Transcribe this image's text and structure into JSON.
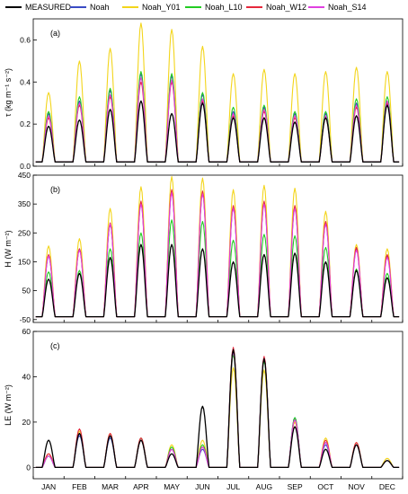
{
  "legend": [
    {
      "name": "MEASURED",
      "color": "#000000"
    },
    {
      "name": "Noah",
      "color": "#3a4bc4"
    },
    {
      "name": "Noah_Y01",
      "color": "#f3d51b"
    },
    {
      "name": "Noah_L10",
      "color": "#22cc22"
    },
    {
      "name": "Noah_W12",
      "color": "#e6283c"
    },
    {
      "name": "Noah_S14",
      "color": "#e040e0"
    }
  ],
  "months": [
    "JAN",
    "FEB",
    "MAR",
    "APR",
    "MAY",
    "JUN",
    "JUL",
    "AUG",
    "SEP",
    "OCT",
    "NOV",
    "DEC"
  ],
  "chart_data": [
    {
      "type": "line",
      "panel_label": "(a)",
      "ylabel": "τ (kg m⁻¹ s⁻²)",
      "ylim": [
        0,
        0.7
      ],
      "yticks": [
        "0.0",
        "0.2",
        "0.4",
        "0.6"
      ],
      "ytick_values": [
        0,
        0.2,
        0.4,
        0.6
      ],
      "x": [
        "JAN",
        "FEB",
        "MAR",
        "APR",
        "MAY",
        "JUN",
        "JUL",
        "AUG",
        "SEP",
        "OCT",
        "NOV",
        "DEC"
      ],
      "series": [
        {
          "name": "MEASURED",
          "peaks": [
            0.19,
            0.22,
            0.27,
            0.31,
            0.25,
            0.3,
            0.23,
            0.23,
            0.21,
            0.23,
            0.24,
            0.29
          ]
        },
        {
          "name": "Noah",
          "peaks": [
            0.25,
            0.31,
            0.36,
            0.44,
            0.43,
            0.34,
            0.26,
            0.28,
            0.25,
            0.25,
            0.3,
            0.31
          ]
        },
        {
          "name": "Noah_Y01",
          "peaks": [
            0.35,
            0.5,
            0.56,
            0.68,
            0.65,
            0.57,
            0.44,
            0.46,
            0.44,
            0.45,
            0.47,
            0.45
          ]
        },
        {
          "name": "Noah_L10",
          "peaks": [
            0.26,
            0.33,
            0.37,
            0.45,
            0.44,
            0.35,
            0.28,
            0.29,
            0.26,
            0.26,
            0.32,
            0.33
          ]
        },
        {
          "name": "Noah_W12",
          "peaks": [
            0.23,
            0.29,
            0.33,
            0.4,
            0.4,
            0.31,
            0.24,
            0.26,
            0.23,
            0.23,
            0.28,
            0.3
          ]
        },
        {
          "name": "Noah_S14",
          "peaks": [
            0.24,
            0.3,
            0.34,
            0.42,
            0.41,
            0.32,
            0.25,
            0.27,
            0.24,
            0.24,
            0.29,
            0.31
          ]
        }
      ],
      "base": 0.02
    },
    {
      "type": "line",
      "panel_label": "(b)",
      "ylabel": "H (W m⁻²)",
      "ylim": [
        -60,
        450
      ],
      "yticks": [
        "-50",
        "50",
        "150",
        "250",
        "350",
        "450"
      ],
      "ytick_values": [
        -50,
        50,
        150,
        250,
        350,
        450
      ],
      "x": [
        "JAN",
        "FEB",
        "MAR",
        "APR",
        "MAY",
        "JUN",
        "JUL",
        "AUG",
        "SEP",
        "OCT",
        "NOV",
        "DEC"
      ],
      "series": [
        {
          "name": "MEASURED",
          "peaks": [
            90,
            110,
            165,
            210,
            210,
            195,
            150,
            175,
            180,
            150,
            120,
            95
          ]
        },
        {
          "name": "Noah",
          "peaks": [
            170,
            195,
            280,
            355,
            395,
            390,
            340,
            355,
            340,
            285,
            195,
            170
          ]
        },
        {
          "name": "Noah_Y01",
          "peaks": [
            205,
            230,
            335,
            410,
            445,
            440,
            400,
            415,
            405,
            325,
            210,
            195
          ]
        },
        {
          "name": "Noah_L10",
          "peaks": [
            115,
            120,
            195,
            250,
            295,
            290,
            225,
            245,
            240,
            200,
            125,
            110
          ]
        },
        {
          "name": "Noah_W12",
          "peaks": [
            175,
            195,
            285,
            360,
            400,
            395,
            345,
            360,
            345,
            290,
            200,
            175
          ]
        },
        {
          "name": "Noah_S14",
          "peaks": [
            170,
            190,
            280,
            350,
            390,
            385,
            335,
            350,
            335,
            280,
            190,
            165
          ]
        }
      ],
      "base": -40
    },
    {
      "type": "line",
      "panel_label": "(c)",
      "ylabel": "LE (W m⁻²)",
      "ylim": [
        -5,
        60
      ],
      "yticks": [
        "0",
        "20",
        "40",
        "60"
      ],
      "ytick_values": [
        0,
        20,
        40,
        60
      ],
      "x": [
        "JAN",
        "FEB",
        "MAR",
        "APR",
        "MAY",
        "JUN",
        "JUL",
        "AUG",
        "SEP",
        "OCT",
        "NOV",
        "DEC"
      ],
      "series": [
        {
          "name": "MEASURED",
          "peaks": [
            12,
            15,
            14,
            12,
            6,
            27,
            52,
            48,
            18,
            8,
            10,
            3
          ]
        },
        {
          "name": "Noah",
          "peaks": [
            5,
            14,
            13,
            12,
            8,
            8,
            52,
            48,
            22,
            10,
            10,
            3
          ]
        },
        {
          "name": "Noah_Y01",
          "peaks": [
            6,
            16,
            15,
            12,
            10,
            12,
            44,
            43,
            20,
            13,
            11,
            4
          ]
        },
        {
          "name": "Noah_L10",
          "peaks": [
            5,
            15,
            14,
            13,
            9,
            10,
            50,
            47,
            22,
            11,
            10,
            3
          ]
        },
        {
          "name": "Noah_W12",
          "peaks": [
            6,
            17,
            15,
            13,
            8,
            9,
            53,
            49,
            21,
            12,
            11,
            3
          ]
        },
        {
          "name": "Noah_S14",
          "peaks": [
            5,
            15,
            14,
            12,
            8,
            9,
            51,
            48,
            21,
            11,
            10,
            3
          ]
        }
      ],
      "base": 0
    }
  ]
}
